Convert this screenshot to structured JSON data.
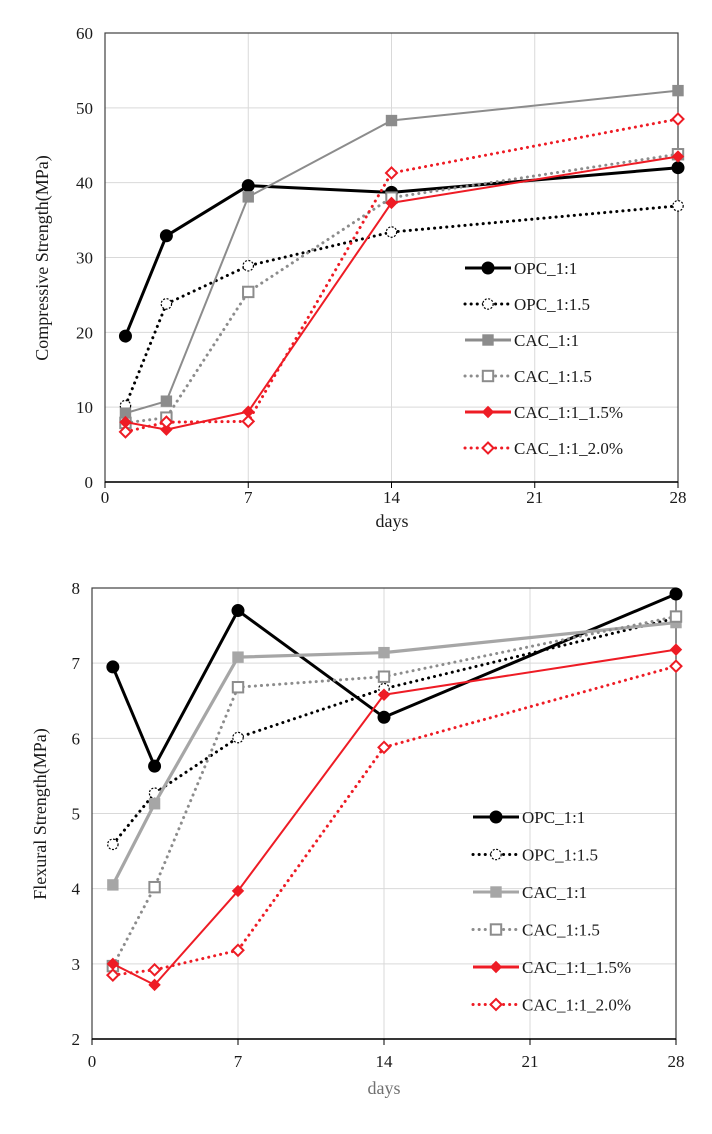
{
  "chart_data": [
    {
      "type": "line",
      "title": "",
      "xlabel": "days",
      "ylabel": "Compressive Strength(MPa)",
      "xlim": [
        0,
        28
      ],
      "ylim": [
        0,
        60
      ],
      "xticks": [
        0,
        7,
        14,
        21,
        28
      ],
      "yticks": [
        0,
        10,
        20,
        30,
        40,
        50,
        60
      ],
      "grid": true,
      "legend_position": "lower-right",
      "x": [
        1,
        3,
        7,
        14,
        28
      ],
      "series": [
        {
          "name": "OPC_1:1",
          "values": [
            19.5,
            32.9,
            39.6,
            38.7,
            42.0
          ],
          "color": "#000000",
          "line": "solid",
          "marker": "circle-filled"
        },
        {
          "name": "OPC_1:1.5",
          "values": [
            10.2,
            23.8,
            28.9,
            33.4,
            36.9
          ],
          "color": "#000000",
          "line": "dotted",
          "marker": "circle-open"
        },
        {
          "name": "CAC_1:1",
          "values": [
            9.2,
            10.8,
            38.1,
            48.3,
            52.3
          ],
          "color": "#8c8c8c",
          "line": "solid",
          "marker": "square-filled"
        },
        {
          "name": "CAC_1:1.5",
          "values": [
            7.9,
            8.6,
            25.4,
            38.0,
            43.8
          ],
          "color": "#8c8c8c",
          "line": "dotted",
          "marker": "square-open"
        },
        {
          "name": "CAC_1:1_1.5%",
          "values": [
            8.0,
            7.0,
            9.4,
            37.3,
            43.5
          ],
          "color": "#ee1c25",
          "line": "solid",
          "marker": "diamond-filled"
        },
        {
          "name": "CAC_1:1_2.0%",
          "values": [
            6.7,
            8.0,
            8.1,
            41.3,
            48.5
          ],
          "color": "#ee1c25",
          "line": "dotted",
          "marker": "diamond-open"
        }
      ]
    },
    {
      "type": "line",
      "title": "",
      "xlabel": "days",
      "ylabel": "Flexural Strength(MPa)",
      "xlim": [
        0,
        28
      ],
      "ylim": [
        2,
        8
      ],
      "xticks": [
        0,
        7,
        14,
        21,
        28
      ],
      "yticks": [
        2,
        3,
        4,
        5,
        6,
        7,
        8
      ],
      "grid": true,
      "legend_position": "lower-right",
      "x": [
        1,
        3,
        7,
        14,
        28
      ],
      "series": [
        {
          "name": "OPC_1:1",
          "values": [
            6.95,
            5.63,
            7.7,
            6.28,
            7.92
          ],
          "color": "#000000",
          "line": "solid",
          "marker": "circle-filled"
        },
        {
          "name": "OPC_1:1.5",
          "values": [
            4.59,
            5.27,
            6.01,
            6.66,
            7.6
          ],
          "color": "#000000",
          "line": "dotted",
          "marker": "circle-open"
        },
        {
          "name": "CAC_1:1",
          "values": [
            4.05,
            5.13,
            7.08,
            7.14,
            7.54
          ],
          "color": "#a6a6a6",
          "line": "solid",
          "marker": "square-filled"
        },
        {
          "name": "CAC_1:1.5",
          "values": [
            2.97,
            4.02,
            6.68,
            6.82,
            7.62
          ],
          "color": "#8c8c8c",
          "line": "dotted",
          "marker": "square-open"
        },
        {
          "name": "CAC_1:1_1.5%",
          "values": [
            3.0,
            2.72,
            3.97,
            6.58,
            7.18
          ],
          "color": "#ee1c25",
          "line": "solid",
          "marker": "diamond-filled"
        },
        {
          "name": "CAC_1:1_2.0%",
          "values": [
            2.85,
            2.92,
            3.18,
            5.88,
            6.96
          ],
          "color": "#ee1c25",
          "line": "dotted",
          "marker": "diamond-open"
        }
      ]
    }
  ]
}
